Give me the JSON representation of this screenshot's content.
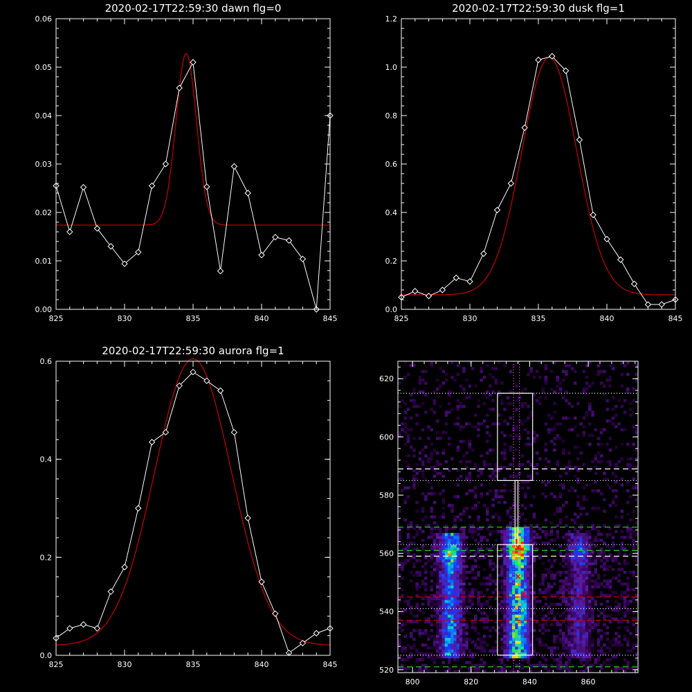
{
  "chart_data": [
    {
      "type": "line",
      "title": "2020-02-17T22:59:30 dawn flg=0",
      "xlim": [
        825,
        845
      ],
      "ylim": [
        0,
        0.06
      ],
      "xticks": [
        825,
        830,
        835,
        840,
        845
      ],
      "yticks": [
        0.0,
        0.01,
        0.02,
        0.03,
        0.04,
        0.05,
        0.06
      ],
      "ytick_labels": [
        "0.00",
        "0.01",
        "0.02",
        "0.03",
        "0.04",
        "0.05",
        "0.06"
      ],
      "series": [
        {
          "style": "white line with diamond markers",
          "color": "#ffffff",
          "x": [
            825,
            826,
            827,
            828,
            829,
            830,
            831,
            832,
            833,
            834,
            835,
            836,
            837,
            838,
            839,
            840,
            841,
            842,
            843,
            844,
            845
          ],
          "y": [
            0.0255,
            0.016,
            0.0252,
            0.0167,
            0.013,
            0.0094,
            0.0118,
            0.0255,
            0.03,
            0.0457,
            0.051,
            0.0253,
            0.0079,
            0.0295,
            0.024,
            0.0112,
            0.0149,
            0.0142,
            0.0104,
            0.0,
            0.04
          ]
        },
        {
          "style": "red gaussian fit",
          "color": "#cc0000",
          "fit": {
            "baseline": 0.0174,
            "amplitude": 0.0354,
            "center": 834.5,
            "sigma": 0.75
          }
        }
      ]
    },
    {
      "type": "line",
      "title": "2020-02-17T22:59:30 dusk flg=1",
      "xlim": [
        825,
        845
      ],
      "ylim": [
        0,
        1.2
      ],
      "xticks": [
        825,
        830,
        835,
        840,
        845
      ],
      "yticks": [
        0.0,
        0.2,
        0.4,
        0.6,
        0.8,
        1.0,
        1.2
      ],
      "ytick_labels": [
        "0.0",
        "0.2",
        "0.4",
        "0.6",
        "0.8",
        "1.0",
        "1.2"
      ],
      "series": [
        {
          "style": "white line with diamond markers",
          "color": "#ffffff",
          "x": [
            825,
            826,
            827,
            828,
            829,
            830,
            831,
            832,
            833,
            834,
            835,
            836,
            837,
            838,
            839,
            840,
            841,
            842,
            843,
            844,
            845
          ],
          "y": [
            0.05,
            0.075,
            0.055,
            0.08,
            0.13,
            0.115,
            0.23,
            0.41,
            0.52,
            0.75,
            1.03,
            1.045,
            0.985,
            0.7,
            0.39,
            0.29,
            0.205,
            0.105,
            0.02,
            0.02,
            0.04
          ]
        },
        {
          "style": "red gaussian fit",
          "color": "#cc0000",
          "fit": {
            "baseline": 0.06,
            "amplitude": 0.98,
            "center": 835.8,
            "sigma": 2.0
          }
        }
      ]
    },
    {
      "type": "line",
      "title": "2020-02-17T22:59:30 aurora flg=1",
      "xlim": [
        825,
        845
      ],
      "ylim": [
        0,
        0.6
      ],
      "xticks": [
        825,
        830,
        835,
        840,
        845
      ],
      "yticks": [
        0.0,
        0.2,
        0.4,
        0.6
      ],
      "ytick_labels": [
        "0.0",
        "0.2",
        "0.4",
        "0.6"
      ],
      "series": [
        {
          "style": "white line with diamond markers",
          "color": "#ffffff",
          "x": [
            825,
            826,
            827,
            828,
            829,
            830,
            831,
            832,
            833,
            834,
            835,
            836,
            837,
            838,
            839,
            840,
            841,
            842,
            843,
            844,
            845
          ],
          "y": [
            0.035,
            0.055,
            0.063,
            0.055,
            0.13,
            0.18,
            0.3,
            0.435,
            0.455,
            0.55,
            0.578,
            0.56,
            0.54,
            0.455,
            0.28,
            0.15,
            0.085,
            0.005,
            0.025,
            0.045,
            0.055
          ]
        },
        {
          "style": "red gaussian fit",
          "color": "#cc0000",
          "fit": {
            "baseline": 0.02,
            "amplitude": 0.585,
            "center": 835.0,
            "sigma": 2.8
          }
        }
      ]
    },
    {
      "type": "heatmap",
      "xlim": [
        795,
        877
      ],
      "ylim": [
        519,
        626
      ],
      "xticks": [
        800,
        820,
        840,
        860
      ],
      "yticks": [
        520,
        540,
        560,
        580,
        600,
        620
      ],
      "colormap": "black-purple-blue-cyan-green-yellow-red",
      "emission_columns": [
        {
          "x_center": 813,
          "x_halfwidth": 4,
          "y_range": [
            524,
            566
          ],
          "peak_y": 560,
          "intensity": 0.65
        },
        {
          "x_center": 836,
          "x_halfwidth": 4,
          "y_range": [
            524,
            568
          ],
          "peak_y": 561,
          "intensity": 1.0
        },
        {
          "x_center": 857,
          "x_halfwidth": 4,
          "y_range": [
            524,
            566
          ],
          "peak_y": 560,
          "intensity": 0.35
        }
      ],
      "boxes": [
        {
          "x": [
            829,
            841
          ],
          "y": [
            585,
            615
          ],
          "color": "#ffffff"
        },
        {
          "x": [
            829,
            841
          ],
          "y": [
            525,
            563
          ],
          "color": "#ffffff"
        },
        {
          "x": [
            835,
            836
          ],
          "y": [
            563,
            585
          ],
          "color": "#ffffff"
        }
      ],
      "hlines": [
        {
          "y": 615,
          "style": "dotted",
          "color": "#ffffff"
        },
        {
          "y": 589,
          "style": "dashed",
          "color": "#ffffff"
        },
        {
          "y": 585,
          "style": "dotted",
          "color": "#ffffff"
        },
        {
          "y": 569,
          "style": "dashed",
          "color": "#22cc22"
        },
        {
          "y": 563,
          "style": "dotted",
          "color": "#ffffff"
        },
        {
          "y": 561,
          "style": "dashed",
          "color": "#22cc22"
        },
        {
          "y": 559,
          "style": "dashed",
          "color": "#ffffff"
        },
        {
          "y": 545,
          "style": "dashed",
          "color": "#cc0000"
        },
        {
          "y": 541,
          "style": "dotted",
          "color": "#ffffff"
        },
        {
          "y": 537,
          "style": "dashed",
          "color": "#cc0000"
        },
        {
          "y": 525,
          "style": "dotted",
          "color": "#ffffff"
        },
        {
          "y": 521,
          "style": "dashed",
          "color": "#22cc22"
        }
      ],
      "vlines": [
        {
          "x": 834.5,
          "style": "dotted",
          "color": "#ff66ff"
        },
        {
          "x": 836.5,
          "style": "dotted",
          "color": "#ff66ff"
        }
      ],
      "markers": [
        {
          "x": 836,
          "y": 562,
          "color": "#ff0000"
        },
        {
          "x": 836,
          "y": 552,
          "color": "#ff0000"
        },
        {
          "x": 838,
          "y": 546,
          "color": "#ff0000"
        }
      ]
    }
  ]
}
